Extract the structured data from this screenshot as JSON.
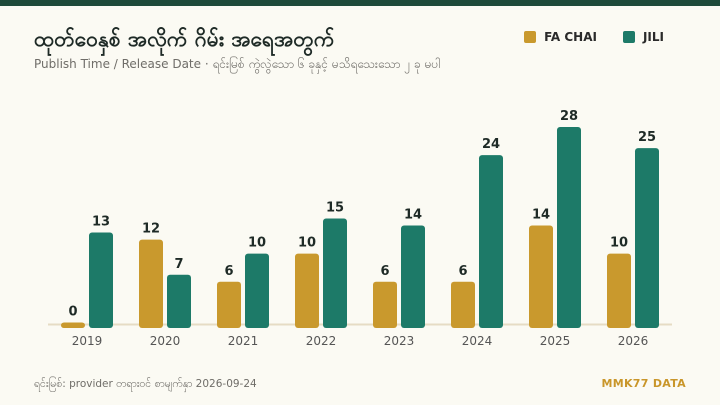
{
  "title": "ထုတ်ဝေနှစ် အလိုက် ဂိမ်း အရေအတွက်",
  "subtitle": "Publish Time / Release Date · ရင်းမြစ် ကွဲလွဲသော ၆ ခုနှင့် မသိရသေးသော ၂ ခု မပါ",
  "legend": [
    {
      "name": "FA CHAI",
      "color": "#c9992d"
    },
    {
      "name": "JILI",
      "color": "#1d7a68"
    }
  ],
  "footer": {
    "source": "ရင်းမြစ်: provider တရားဝင် စာမျက်နှာ 2026-09-24",
    "brand": "MMK77 DATA"
  },
  "chart_data": {
    "type": "bar",
    "categories": [
      "2019",
      "2020",
      "2021",
      "2022",
      "2023",
      "2024",
      "2025",
      "2026"
    ],
    "series": [
      {
        "name": "FA CHAI",
        "color": "#c9992d",
        "values": [
          0,
          12,
          6,
          10,
          6,
          6,
          14,
          10
        ]
      },
      {
        "name": "JILI",
        "color": "#1d7a68",
        "values": [
          13,
          7,
          10,
          15,
          14,
          24,
          28,
          25
        ]
      }
    ],
    "ylim": [
      0,
      28
    ],
    "grid": false,
    "legend_position": "top-right"
  }
}
